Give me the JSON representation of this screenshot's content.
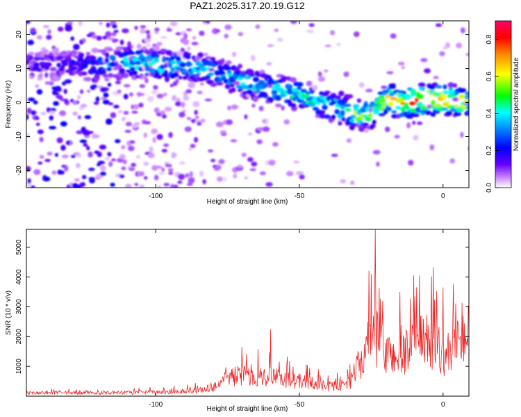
{
  "figure_title": "PAZ1.2025.317.20.19.G12",
  "chart_data": [
    {
      "type": "heatmap",
      "title": "PAZ1.2025.317.20.19.G12",
      "xlabel": "Height of straight line (km)",
      "ylabel": "Frequency (Hz)",
      "xlim": [
        -145,
        9
      ],
      "ylim": [
        -25,
        24
      ],
      "xticks": [
        -100,
        -50,
        0
      ],
      "yticks": [
        -20,
        -10,
        0,
        10,
        20
      ],
      "xtick_labels": [
        "-100",
        "-50",
        "0"
      ],
      "ytick_labels": [
        "-20",
        "-10",
        "0",
        "10",
        "20"
      ],
      "colorbar": {
        "label": "Normalized spectral amplitude",
        "range": [
          0,
          0.9
        ],
        "ticks": [
          0.0,
          0.2,
          0.4,
          0.6,
          0.8
        ],
        "tick_labels": [
          "0.0",
          "0.2",
          "0.4",
          "0.6",
          "0.8"
        ],
        "colors": [
          "#ffffff",
          "#6600ff",
          "#0000ff",
          "#00ffff",
          "#00ff00",
          "#ffff00",
          "#ff0000",
          "#ff0066"
        ]
      },
      "ridge": {
        "heights_km": [
          -145,
          -130,
          -120,
          -110,
          -100,
          -90,
          -80,
          -70,
          -60,
          -50,
          -40,
          -35,
          -30,
          -25,
          -20,
          -15,
          -10,
          -5,
          0,
          9
        ],
        "frequency_hz": [
          11,
          11,
          11,
          12,
          11,
          11,
          9,
          6,
          4,
          2,
          -1,
          -2,
          -3.5,
          -3,
          1,
          0,
          0.5,
          1,
          1,
          0
        ],
        "amplitude": [
          0.15,
          0.2,
          0.3,
          0.4,
          0.45,
          0.4,
          0.35,
          0.4,
          0.4,
          0.45,
          0.45,
          0.5,
          0.55,
          0.5,
          0.6,
          0.75,
          0.8,
          0.8,
          0.75,
          0.6
        ]
      }
    },
    {
      "type": "line",
      "xlabel": "Height of straight line (km)",
      "ylabel": "SNR (10 * v/v)",
      "xlim": [
        -145,
        9
      ],
      "ylim": [
        0,
        5600
      ],
      "xticks": [
        -100,
        -50,
        0
      ],
      "yticks": [
        1000,
        2000,
        3000,
        4000,
        5000
      ],
      "xtick_labels": [
        "-100",
        "-50",
        "0"
      ],
      "ytick_labels": [
        "1000",
        "2000",
        "3000",
        "4000",
        "5000"
      ],
      "series": [
        {
          "name": "SNR",
          "color": "#ee2222",
          "envelope_x": [
            -145,
            -130,
            -110,
            -95,
            -85,
            -80,
            -75,
            -70,
            -60,
            -55,
            -50,
            -45,
            -40,
            -35,
            -32,
            -30,
            -27,
            -25,
            -24,
            -23,
            -20,
            -15,
            -10,
            -5,
            -2,
            0,
            3,
            6,
            9
          ],
          "envelope_y": [
            150,
            150,
            160,
            200,
            260,
            400,
            900,
            950,
            900,
            800,
            700,
            550,
            450,
            500,
            700,
            1300,
            2000,
            2800,
            3000,
            2600,
            2000,
            1800,
            2400,
            2600,
            2400,
            1800,
            2200,
            2800,
            2900
          ],
          "spikes": [
            {
              "x": -23.5,
              "y": 5600
            },
            {
              "x": -60,
              "y": 2250
            },
            {
              "x": -70,
              "y": 1650
            },
            {
              "x": 0,
              "y": 3650
            },
            {
              "x": -15,
              "y": 3500
            },
            {
              "x": -25,
              "y": 4100
            },
            {
              "x": -21,
              "y": 3200
            }
          ]
        }
      ]
    }
  ]
}
